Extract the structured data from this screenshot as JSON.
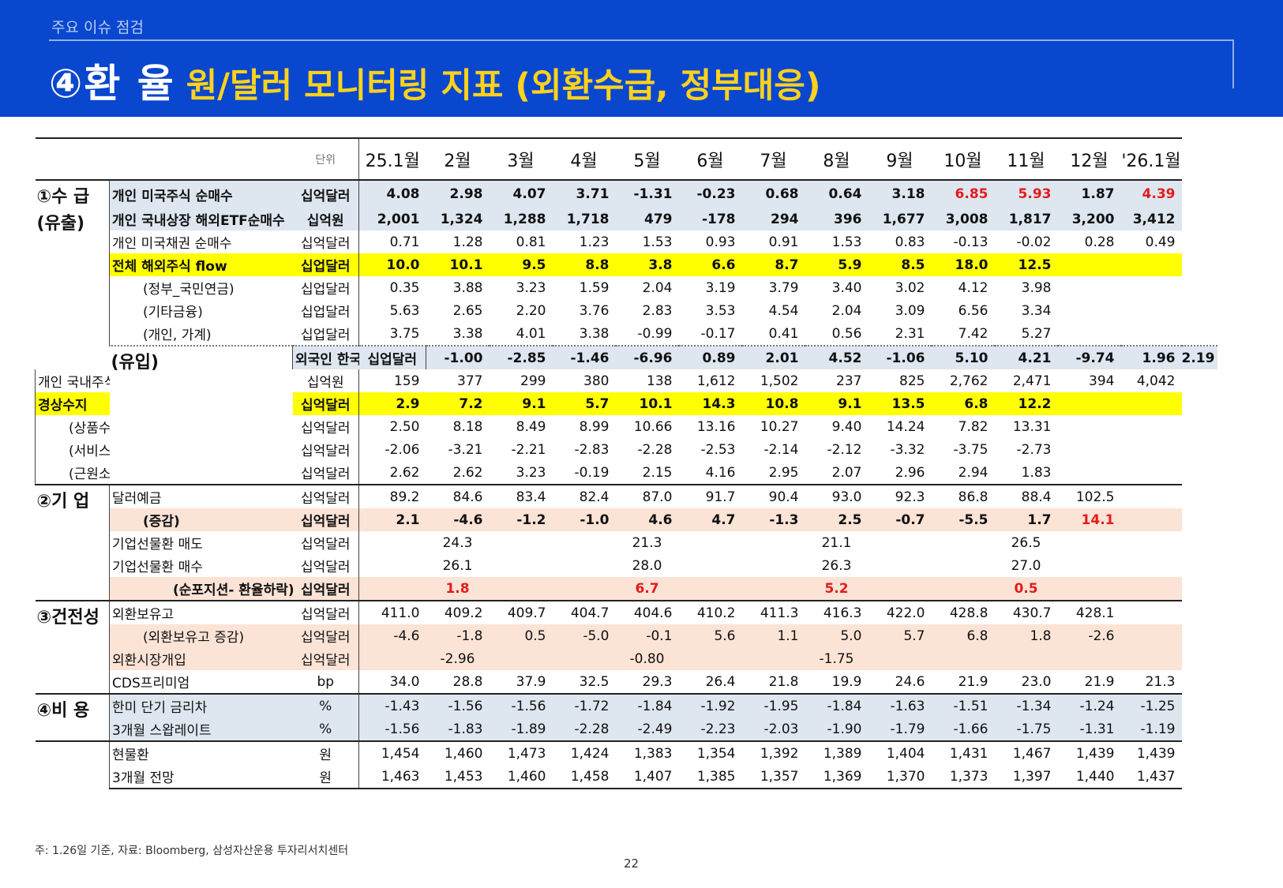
{
  "header": {
    "kicker": "주요 이슈 점검",
    "title_main": "④환  율",
    "title_sub": "원/달러 모니터링 지표 (외환수급, 정부대응)"
  },
  "table": {
    "unit_header": "단위",
    "months": [
      "25.1월",
      "2월",
      "3월",
      "4월",
      "5월",
      "6월",
      "7월",
      "8월",
      "9월",
      "10월",
      "11월",
      "12월",
      "'26.1월"
    ],
    "groups": {
      "supply": "①수 급",
      "outflow": "(유출)",
      "inflow": "(유입)",
      "corp": "②기 업",
      "health": "③건전성",
      "cost": "④비 용"
    },
    "rows": {
      "r1": {
        "label": "개인 미국주식 순매수",
        "unit": "십억달러",
        "values": [
          "4.08",
          "2.98",
          "4.07",
          "3.71",
          "-1.31",
          "-0.23",
          "0.68",
          "0.64",
          "3.18",
          "6.85",
          "5.93",
          "1.87",
          "4.39"
        ]
      },
      "r2": {
        "label": "개인 국내상장 해외ETF순매수",
        "unit": "십억원",
        "values": [
          "2,001",
          "1,324",
          "1,288",
          "1,718",
          "479",
          "-178",
          "294",
          "396",
          "1,677",
          "3,008",
          "1,817",
          "3,200",
          "3,412"
        ]
      },
      "r3": {
        "label": "개인 미국채권 순매수",
        "unit": "십억달러",
        "values": [
          "0.71",
          "1.28",
          "0.81",
          "1.23",
          "1.53",
          "0.93",
          "0.91",
          "1.53",
          "0.83",
          "-0.13",
          "-0.02",
          "0.28",
          "0.49"
        ]
      },
      "r4": {
        "label": "전체 해외주식 flow",
        "unit": "십업달러",
        "values": [
          "10.0",
          "10.1",
          "9.5",
          "8.8",
          "3.8",
          "6.6",
          "8.7",
          "5.9",
          "8.5",
          "18.0",
          "12.5",
          "",
          ""
        ]
      },
      "r5": {
        "label": "(정부_국민연금)",
        "unit": "십업달러",
        "values": [
          "0.35",
          "3.88",
          "3.23",
          "1.59",
          "2.04",
          "3.19",
          "3.79",
          "3.40",
          "3.02",
          "4.12",
          "3.98",
          "",
          ""
        ]
      },
      "r6": {
        "label": "(기타금융)",
        "unit": "십업달러",
        "values": [
          "5.63",
          "2.65",
          "2.20",
          "3.76",
          "2.83",
          "3.53",
          "4.54",
          "2.04",
          "3.09",
          "6.56",
          "3.34",
          "",
          ""
        ]
      },
      "r7": {
        "label": "(개인, 가계)",
        "unit": "십업달러",
        "values": [
          "3.75",
          "3.38",
          "4.01",
          "3.38",
          "-0.99",
          "-0.17",
          "0.41",
          "0.56",
          "2.31",
          "7.42",
          "5.27",
          "",
          ""
        ]
      },
      "r8": {
        "label": "외국인 한국주식 순매수",
        "unit": "십업달러",
        "values": [
          "-1.00",
          "-2.85",
          "-1.46",
          "-6.96",
          "0.89",
          "2.01",
          "4.52",
          "-1.06",
          "5.10",
          "4.21",
          "-9.74",
          "1.96",
          "2.19"
        ]
      },
      "r9": {
        "label": "개인 국내주식ETF 순매수",
        "unit": "십억원",
        "values": [
          "159",
          "377",
          "299",
          "380",
          "138",
          "1,612",
          "1,502",
          "237",
          "825",
          "2,762",
          "2,471",
          "394",
          "4,042"
        ]
      },
      "r10": {
        "label": "경상수지",
        "unit": "십억달러",
        "values": [
          "2.9",
          "7.2",
          "9.1",
          "5.7",
          "10.1",
          "14.3",
          "10.8",
          "9.1",
          "13.5",
          "6.8",
          "12.2",
          "",
          ""
        ]
      },
      "r11": {
        "label": "(상품수지)",
        "unit": "십억달러",
        "values": [
          "2.50",
          "8.18",
          "8.49",
          "8.99",
          "10.66",
          "13.16",
          "10.27",
          "9.40",
          "14.24",
          "7.82",
          "13.31",
          "",
          ""
        ]
      },
      "r12": {
        "label": "(서비스수지)",
        "unit": "십억달러",
        "values": [
          "-2.06",
          "-3.21",
          "-2.21",
          "-2.83",
          "-2.28",
          "-2.53",
          "-2.14",
          "-2.12",
          "-3.32",
          "-3.75",
          "-2.73",
          "",
          ""
        ]
      },
      "r13": {
        "label": "(근원소득수지)",
        "unit": "십억달러",
        "values": [
          "2.62",
          "2.62",
          "3.23",
          "-0.19",
          "2.15",
          "4.16",
          "2.95",
          "2.07",
          "2.96",
          "2.94",
          "1.83",
          "",
          ""
        ]
      },
      "r14": {
        "label": "달러예금",
        "unit": "십억달러",
        "values": [
          "89.2",
          "84.6",
          "83.4",
          "82.4",
          "87.0",
          "91.7",
          "90.4",
          "93.0",
          "92.3",
          "86.8",
          "88.4",
          "102.5",
          ""
        ]
      },
      "r15": {
        "label": "(증감)",
        "unit": "십억달러",
        "values": [
          "2.1",
          "-4.6",
          "-1.2",
          "-1.0",
          "4.6",
          "4.7",
          "-1.3",
          "2.5",
          "-0.7",
          "-5.5",
          "1.7",
          "14.1",
          ""
        ]
      },
      "r16": {
        "label": "기업선물환 매도",
        "unit": "십억달러",
        "quarterly": [
          "24.3",
          "21.3",
          "21.1",
          "26.5"
        ]
      },
      "r17": {
        "label": "기업선물환 매수",
        "unit": "십억달러",
        "quarterly": [
          "26.1",
          "28.0",
          "26.3",
          "27.0"
        ]
      },
      "r18": {
        "label": "(순포지션- 환율하락)",
        "unit": "십억달러",
        "quarterly": [
          "1.8",
          "6.7",
          "5.2",
          "0.5"
        ]
      },
      "r19": {
        "label": "외환보유고",
        "unit": "십억달러",
        "values": [
          "411.0",
          "409.2",
          "409.7",
          "404.7",
          "404.6",
          "410.2",
          "411.3",
          "416.3",
          "422.0",
          "428.8",
          "430.7",
          "428.1",
          ""
        ]
      },
      "r20": {
        "label": "(외환보유고 증감)",
        "unit": "십억달러",
        "values": [
          "-4.6",
          "-1.8",
          "0.5",
          "-5.0",
          "-0.1",
          "5.6",
          "1.1",
          "5.0",
          "5.7",
          "6.8",
          "1.8",
          "-2.6",
          ""
        ]
      },
      "r21": {
        "label": "외환시장개입",
        "unit": "십억달러",
        "quarterly": [
          "-2.96",
          "-0.80",
          "-1.75"
        ]
      },
      "r22": {
        "label": "CDS프리미엄",
        "unit": "bp",
        "values": [
          "34.0",
          "28.8",
          "37.9",
          "32.5",
          "29.3",
          "26.4",
          "21.8",
          "19.9",
          "24.6",
          "21.9",
          "23.0",
          "21.9",
          "21.3"
        ]
      },
      "r23": {
        "label": "한미 단기 금리차",
        "unit": "%",
        "values": [
          "-1.43",
          "-1.56",
          "-1.56",
          "-1.72",
          "-1.84",
          "-1.92",
          "-1.95",
          "-1.84",
          "-1.63",
          "-1.51",
          "-1.34",
          "-1.24",
          "-1.25"
        ]
      },
      "r24": {
        "label": "3개월 스왑레이트",
        "unit": "%",
        "values": [
          "-1.56",
          "-1.83",
          "-1.89",
          "-2.28",
          "-2.49",
          "-2.23",
          "-2.03",
          "-1.90",
          "-1.79",
          "-1.66",
          "-1.75",
          "-1.31",
          "-1.19"
        ]
      },
      "r25": {
        "label": "현물환",
        "unit": "원",
        "values": [
          "1,454",
          "1,460",
          "1,473",
          "1,424",
          "1,383",
          "1,354",
          "1,392",
          "1,389",
          "1,404",
          "1,431",
          "1,467",
          "1,439",
          "1,439"
        ]
      },
      "r26": {
        "label": "3개월 전망",
        "unit": "원",
        "values": [
          "1,463",
          "1,453",
          "1,460",
          "1,458",
          "1,407",
          "1,385",
          "1,357",
          "1,369",
          "1,370",
          "1,373",
          "1,397",
          "1,440",
          "1,437"
        ]
      }
    }
  },
  "footnote": "주: 1.26일 기준, 자료: Bloomberg, 삼성자산운용 투자리서치센터",
  "page_number": "22",
  "colors": {
    "header_bg": "#0a47cf",
    "title_accent": "#ffd21c",
    "highlight_yellow": "#ffff00",
    "highlight_blue": "#dee6f0",
    "highlight_pink": "#fbe3d6",
    "negative_highlight": "#e51b1b"
  }
}
